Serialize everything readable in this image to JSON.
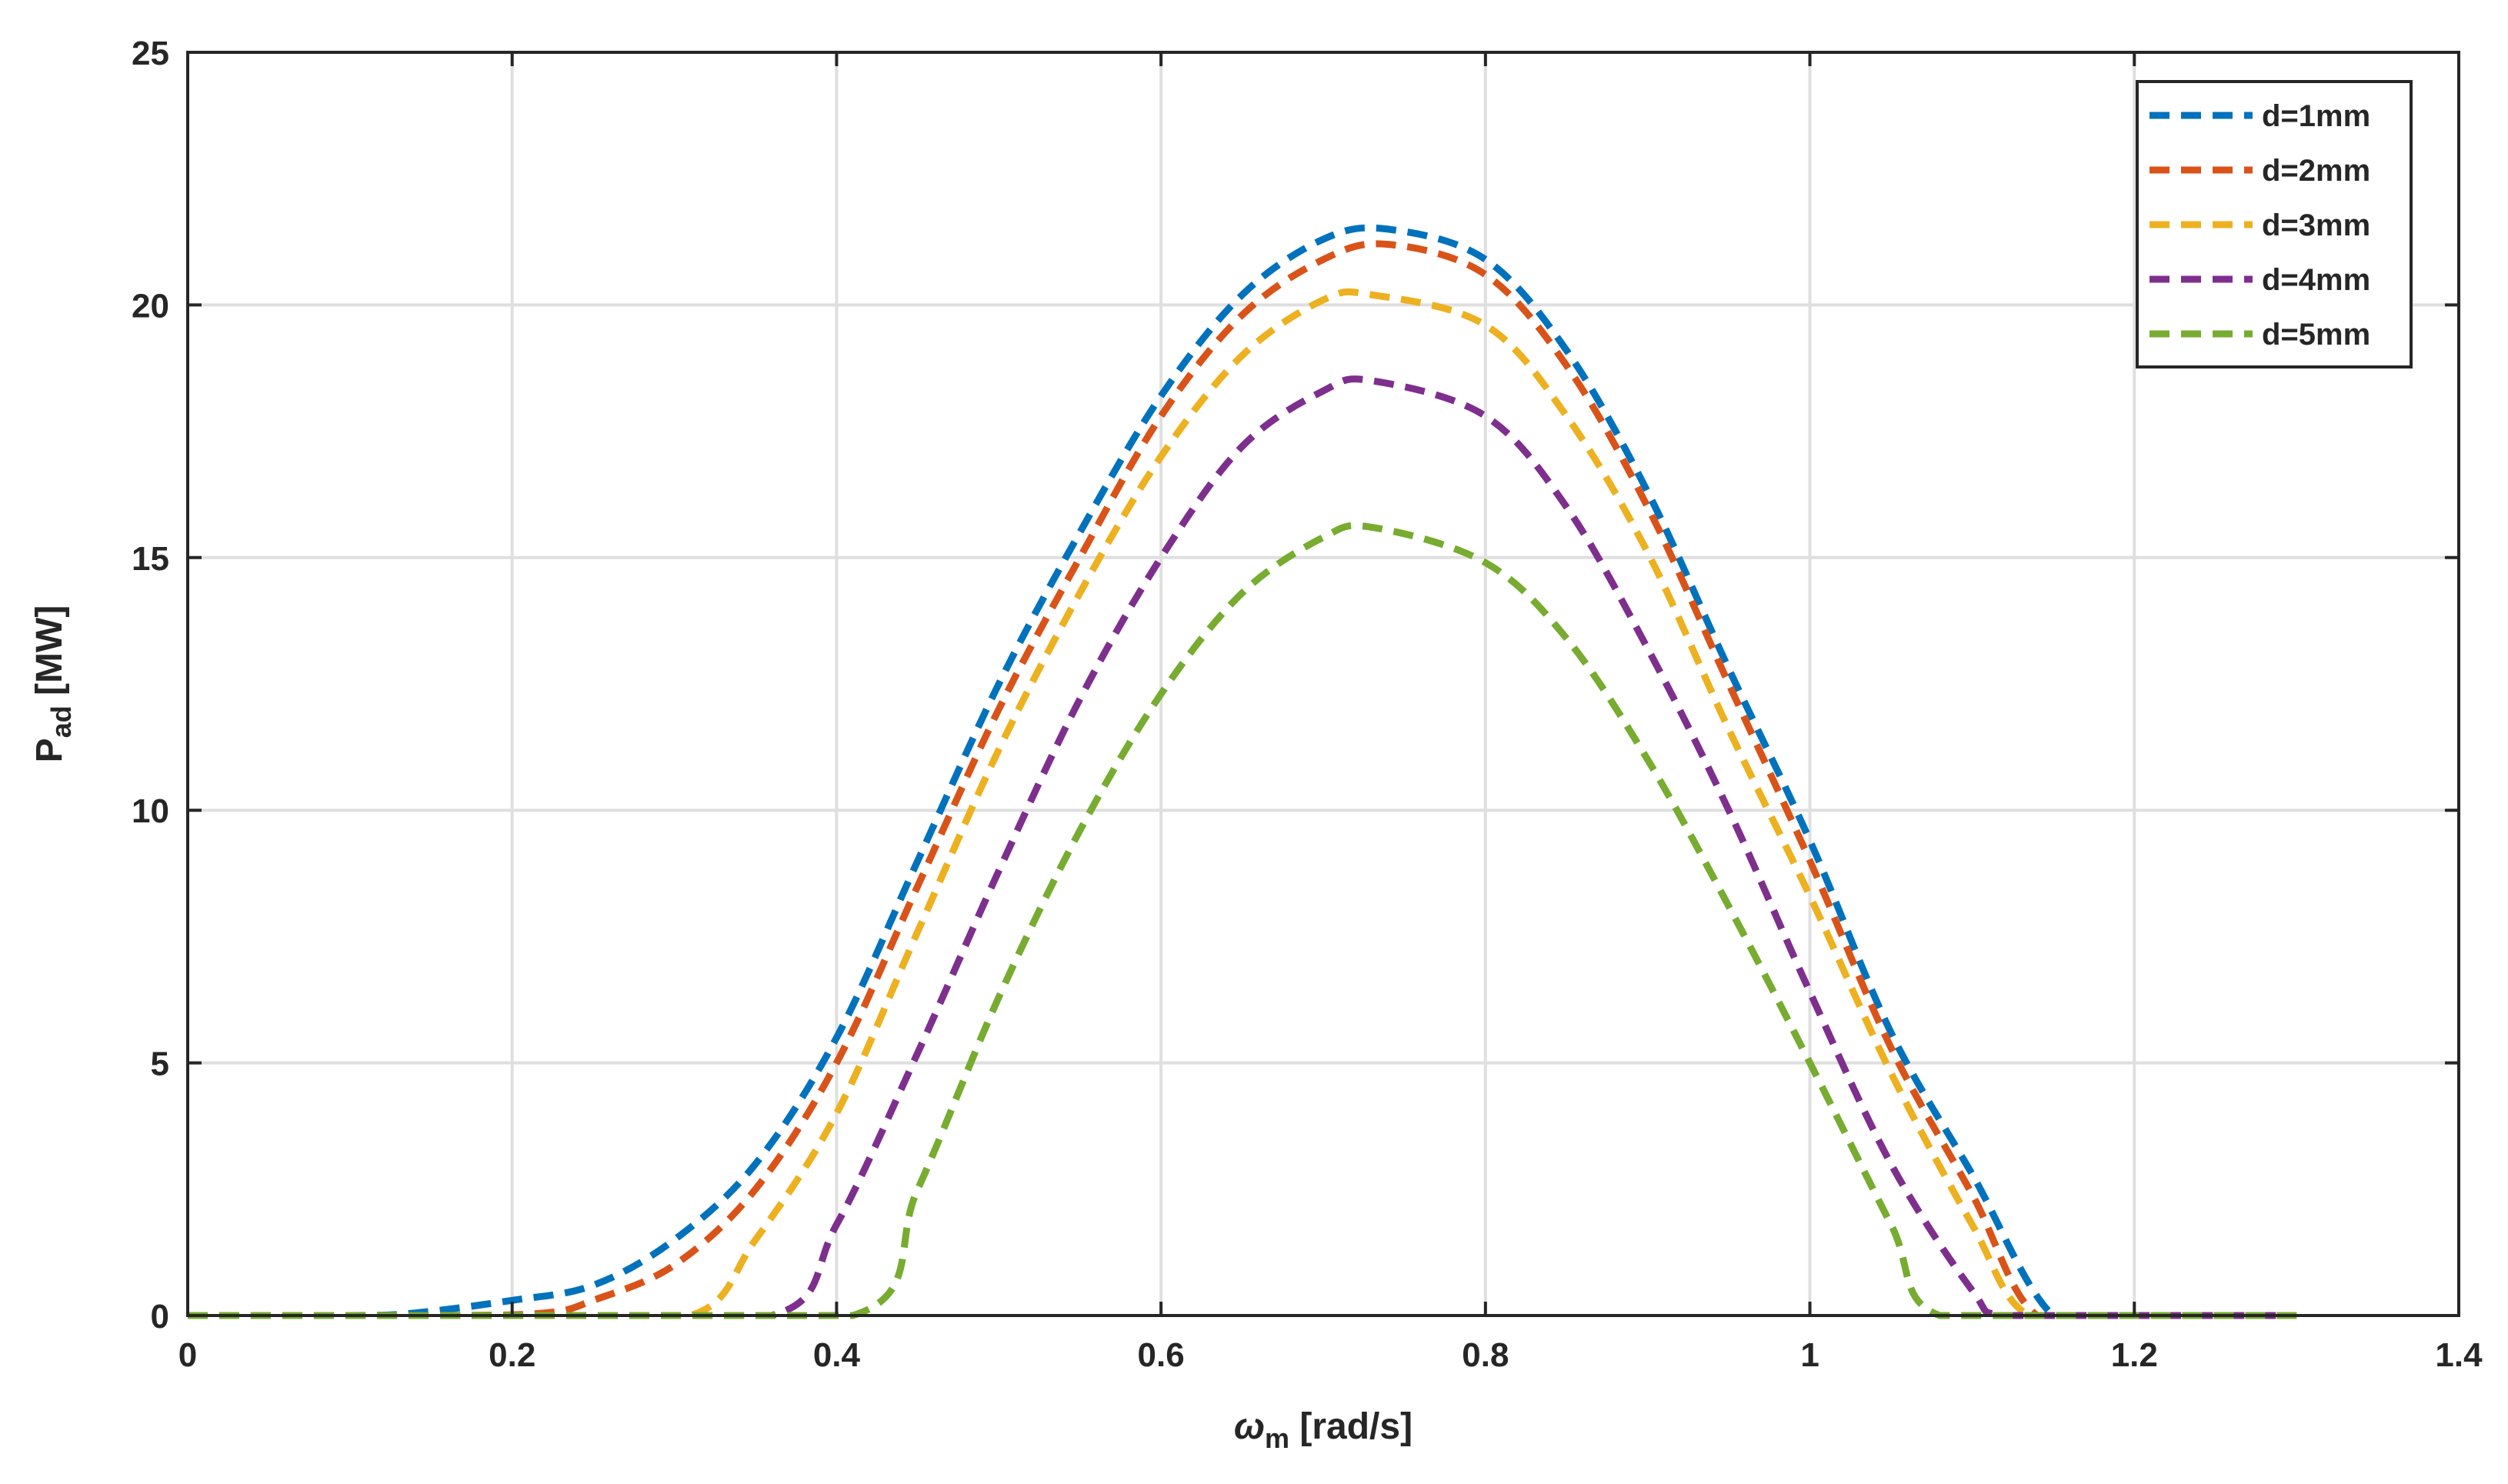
{
  "chart_data": {
    "type": "line",
    "title": "",
    "xlabel": "ω",
    "xlabel_sub": "m",
    "xlabel_unit": " [rad/s]",
    "ylabel": "P",
    "ylabel_sub": "ad",
    "ylabel_unit": " [MW]",
    "xlim": [
      0,
      1.4
    ],
    "ylim": [
      0,
      25
    ],
    "xticks": [
      0,
      0.2,
      0.4,
      0.6,
      0.8,
      1,
      1.2,
      1.4
    ],
    "xtick_labels": [
      "0",
      "0.2",
      "0.4",
      "0.6",
      "0.8",
      "1",
      "1.2",
      "1.4"
    ],
    "yticks": [
      0,
      5,
      10,
      15,
      20,
      25
    ],
    "ytick_labels": [
      "0",
      "5",
      "10",
      "15",
      "20",
      "25"
    ],
    "grid": true,
    "legend_position": "top-right",
    "line_style": "dashed",
    "series": [
      {
        "name": "d=1mm",
        "color": "#0072BD",
        "x": [
          0,
          0.1,
          0.14,
          0.2,
          0.25,
          0.3,
          0.35,
          0.4,
          0.45,
          0.5,
          0.55,
          0.6,
          0.65,
          0.7,
          0.74,
          0.8,
          0.85,
          0.9,
          0.95,
          1.0,
          1.05,
          1.1,
          1.15,
          1.2,
          1.3
        ],
        "y": [
          0,
          0,
          0.05,
          0.3,
          0.6,
          1.5,
          3.0,
          5.5,
          9.0,
          12.5,
          15.5,
          18.2,
          20.2,
          21.3,
          21.5,
          20.9,
          19.1,
          16.3,
          12.8,
          9.4,
          5.6,
          2.8,
          0,
          0,
          0
        ]
      },
      {
        "name": "d=2mm",
        "color": "#D95319",
        "x": [
          0,
          0.15,
          0.22,
          0.25,
          0.3,
          0.35,
          0.4,
          0.45,
          0.5,
          0.55,
          0.6,
          0.65,
          0.7,
          0.74,
          0.8,
          0.85,
          0.9,
          0.95,
          1.0,
          1.05,
          1.1,
          1.14,
          1.2,
          1.3
        ],
        "y": [
          0,
          0,
          0.05,
          0.3,
          1.0,
          2.5,
          5.0,
          8.5,
          12.0,
          15.0,
          17.8,
          19.8,
          20.9,
          21.2,
          20.6,
          18.8,
          16.0,
          12.5,
          9.0,
          5.3,
          2.4,
          0,
          0,
          0
        ]
      },
      {
        "name": "d=3mm",
        "color": "#EDB120",
        "x": [
          0,
          0.2,
          0.31,
          0.35,
          0.4,
          0.45,
          0.5,
          0.55,
          0.6,
          0.65,
          0.7,
          0.73,
          0.8,
          0.85,
          0.9,
          0.95,
          1.0,
          1.05,
          1.1,
          1.135,
          1.2,
          1.3
        ],
        "y": [
          0,
          0,
          0,
          1.5,
          4.0,
          7.6,
          11.2,
          14.3,
          17.0,
          19.0,
          20.1,
          20.2,
          19.6,
          17.8,
          15.1,
          11.6,
          8.3,
          4.8,
          1.8,
          0,
          0,
          0
        ]
      },
      {
        "name": "d=4mm",
        "color": "#7E2F8E",
        "x": [
          0,
          0.2,
          0.36,
          0.4,
          0.45,
          0.5,
          0.55,
          0.6,
          0.65,
          0.7,
          0.73,
          0.8,
          0.85,
          0.9,
          0.95,
          1.0,
          1.05,
          1.1,
          1.12,
          1.2,
          1.3
        ],
        "y": [
          0,
          0,
          0,
          1.8,
          5.2,
          8.8,
          12.2,
          15.0,
          17.2,
          18.3,
          18.5,
          17.8,
          16.0,
          13.2,
          10.0,
          6.4,
          3.0,
          0.5,
          0,
          0,
          0
        ]
      },
      {
        "name": "d=5mm",
        "color": "#77AC30",
        "x": [
          0,
          0.2,
          0.41,
          0.45,
          0.5,
          0.55,
          0.6,
          0.65,
          0.7,
          0.73,
          0.8,
          0.85,
          0.9,
          0.95,
          1.0,
          1.05,
          1.08,
          1.2,
          1.3
        ],
        "y": [
          0,
          0,
          0,
          2.5,
          6.3,
          9.6,
          12.3,
          14.3,
          15.4,
          15.6,
          14.9,
          13.4,
          11.0,
          8.1,
          5.0,
          1.8,
          0,
          0,
          0
        ]
      }
    ]
  }
}
